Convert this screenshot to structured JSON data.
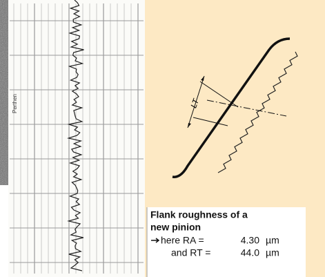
{
  "caption": {
    "title_lines": [
      "Flank roughness of a",
      "new pinion"
    ],
    "rows": [
      {
        "label": "here RA =",
        "value": "4.30",
        "unit": "µm"
      },
      {
        "label": "and RT =",
        "value": "44.0",
        "unit": "µm"
      }
    ]
  },
  "labels": {
    "recorder": "Perthen",
    "dimension": "LT"
  }
}
